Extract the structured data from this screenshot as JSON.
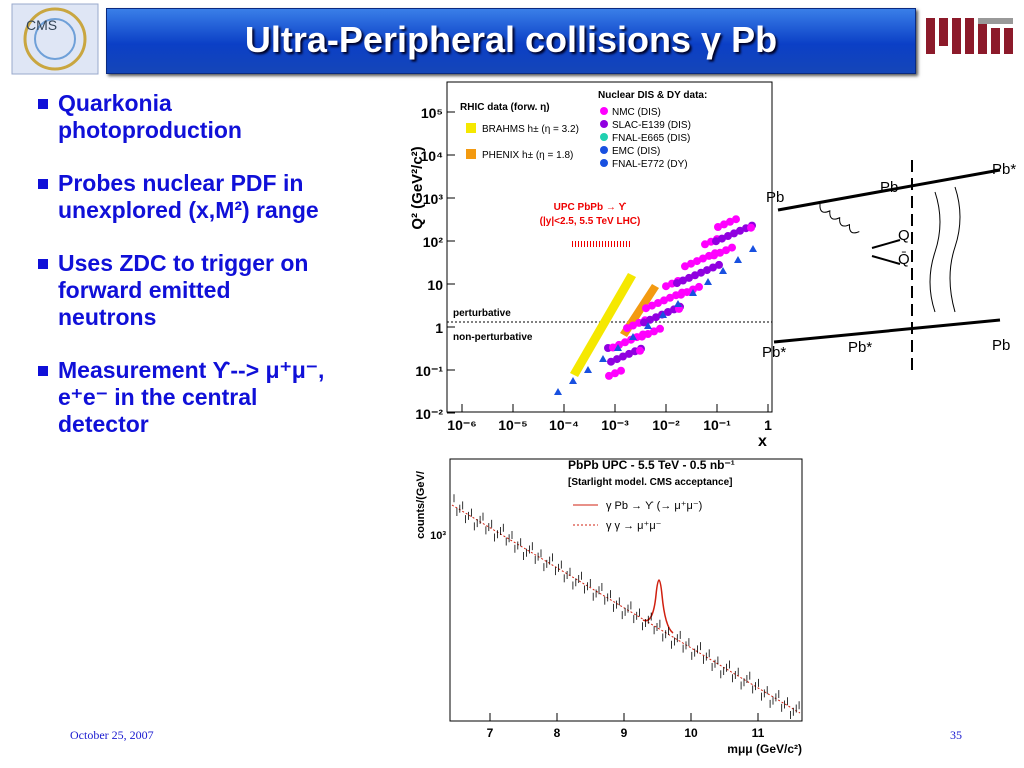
{
  "header": {
    "title": "Ultra-Peripheral collisions γ Pb",
    "left_logo": "CMS"
  },
  "bullets": [
    [
      "Quarkonia",
      "photoproduction"
    ],
    [
      "Probes nuclear PDF in",
      "unexplored (x,M²) range"
    ],
    [
      "Uses ZDC to trigger on",
      "forward emitted",
      "neutrons"
    ],
    [
      "Measurement ϒ--> μ⁺μ⁻,",
      "e⁺e⁻ in the central",
      "detector"
    ]
  ],
  "figure_top": {
    "y_label": "Q² (GeV²/c²)",
    "x_label": "x",
    "y_ticks": [
      "10⁵",
      "10⁴",
      "10³",
      "10²",
      "10",
      "1",
      "10⁻¹",
      "10⁻²"
    ],
    "x_ticks": [
      "10⁻⁶",
      "10⁻⁵",
      "10⁻⁴",
      "10⁻³",
      "10⁻²",
      "10⁻¹",
      "1"
    ],
    "rhic_title": "RHIC data (forw. η)",
    "rhic_items": [
      "BRAHMS h± (η = 3.2)",
      "PHENIX h± (η = 1.8)"
    ],
    "nuclear_title": "Nuclear DIS & DY data:",
    "nuclear_items": [
      "NMC (DIS)",
      "SLAC-E139 (DIS)",
      "FNAL-E665 (DIS)",
      "EMC (DIS)",
      "FNAL-E772 (DY)"
    ],
    "upc_lines": [
      "UPC PbPb → ϒ",
      "(|y|<2.5, 5.5 TeV LHC)"
    ],
    "perturbative": "perturbative",
    "non_perturbative": "non-perturbative"
  },
  "figure_diagram": {
    "labels": [
      "Pb",
      "Pb",
      "Pb*",
      "Q",
      "Q̄",
      "Pb*",
      "Pb*",
      "Pb"
    ]
  },
  "figure_bottom": {
    "title": "PbPb UPC - 5.5 TeV - 0.5 nb⁻¹",
    "subtitle": "[Starlight model. CMS acceptance]",
    "legend": [
      "γ Pb → ϒ (→ μ⁺μ⁻)",
      "γ γ → μ⁺μ⁻"
    ],
    "y_label": "counts/(GeV/",
    "y_tick": "10³",
    "x_ticks": [
      "7",
      "8",
      "9",
      "10",
      "11"
    ],
    "x_label": "mμμ (GeV/c²)"
  },
  "footer": {
    "date": "October 25, 2007",
    "page": "35"
  }
}
